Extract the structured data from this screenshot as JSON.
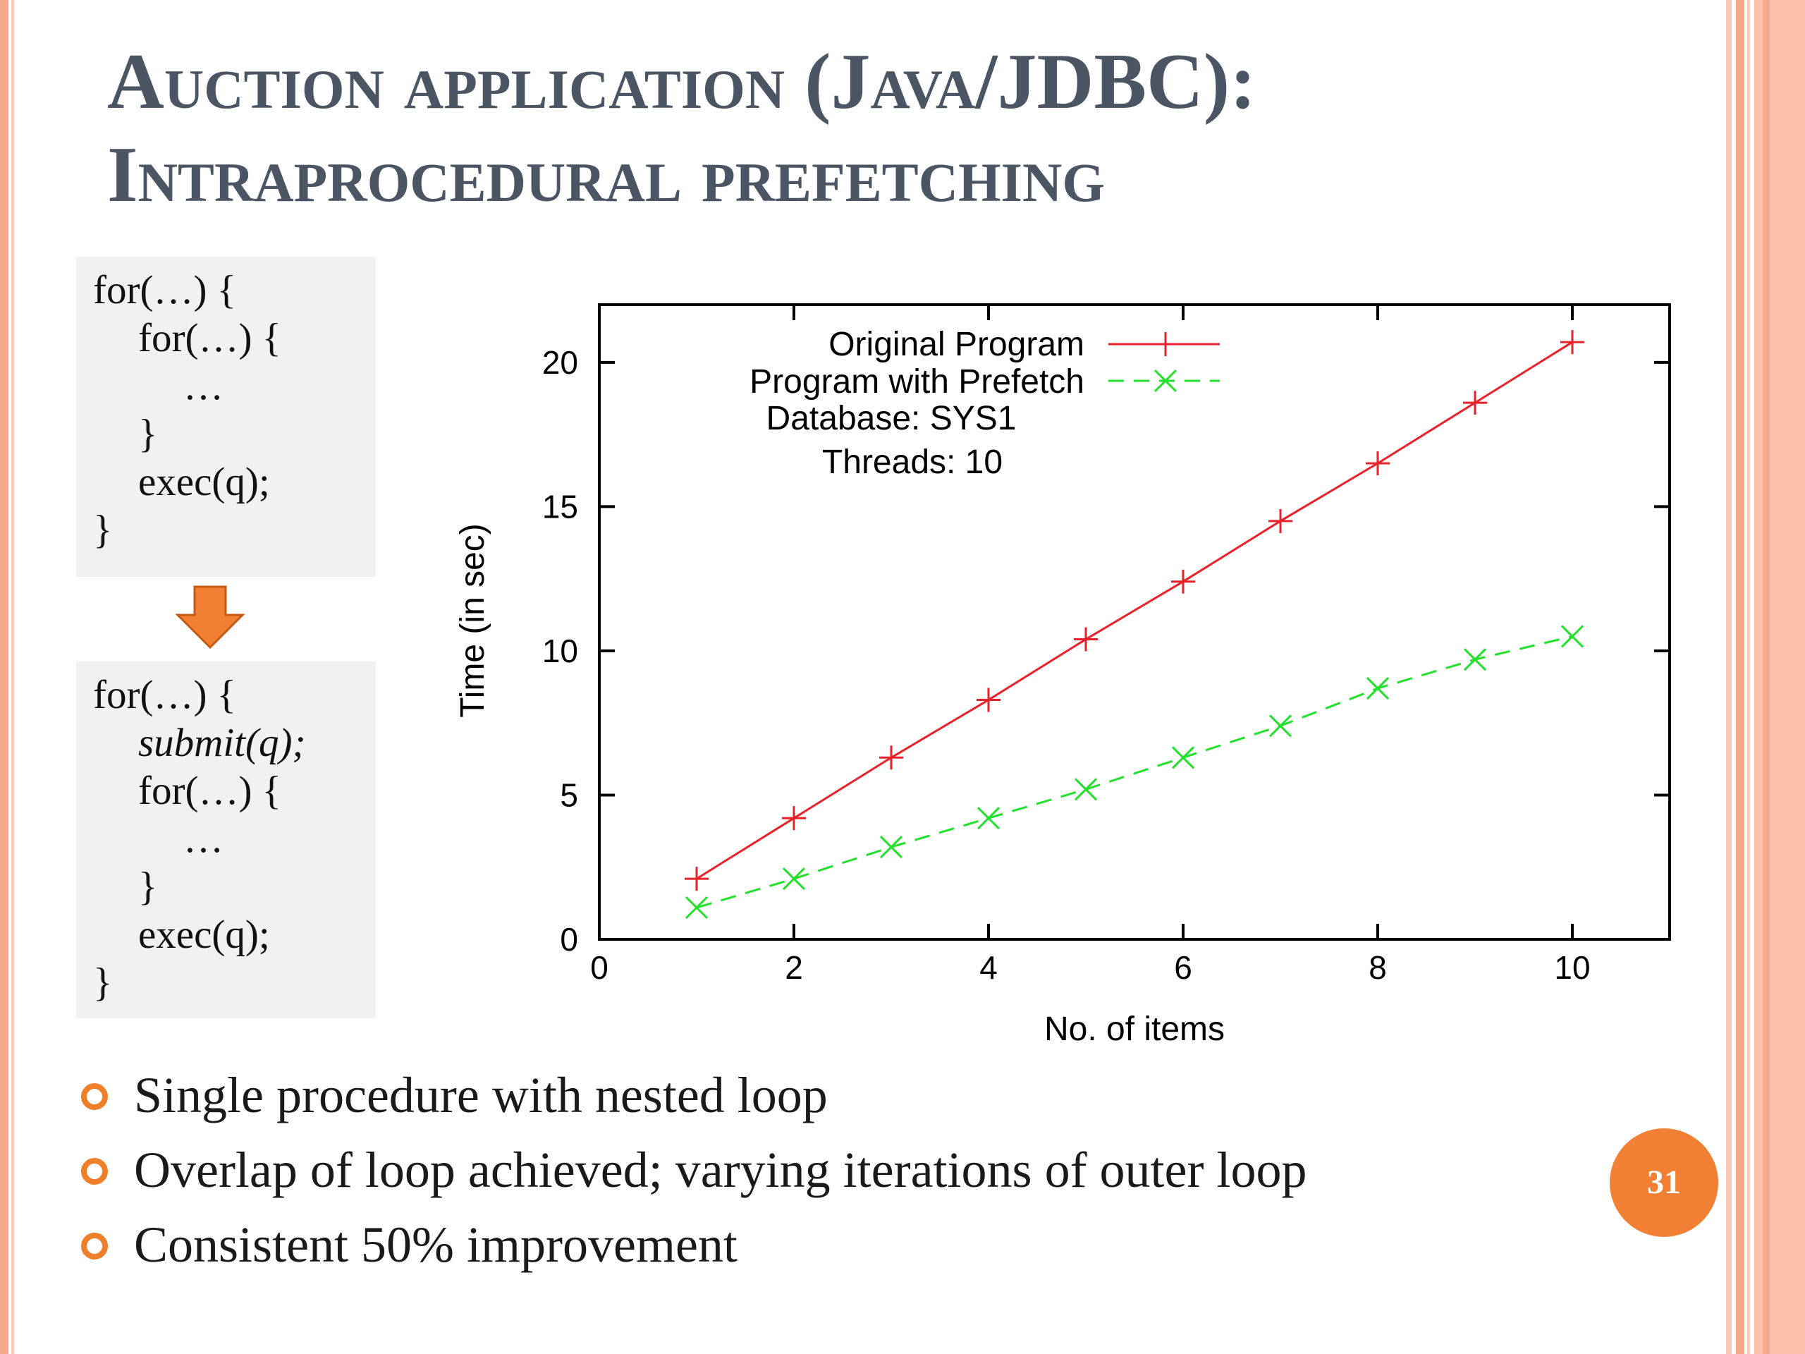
{
  "slide": {
    "title_lines": [
      "Auction application (Java/JDBC):",
      "Intraprocedural prefetching"
    ],
    "page_number": "31",
    "colors": {
      "title": "#4b5563",
      "accent": "#f07f2c",
      "border_stripes": "#f8a98c"
    }
  },
  "code_before": {
    "lines": [
      "for(…) {",
      "for(…) {",
      "…",
      "}",
      "exec(q);",
      "}"
    ]
  },
  "code_after": {
    "lines": [
      "for(…) {",
      "submit(q);",
      "for(…) {",
      "…",
      "}",
      "exec(q);",
      "}"
    ]
  },
  "bullets": [
    "Single procedure with nested loop",
    "Overlap of loop achieved; varying iterations of outer loop",
    "Consistent 50% improvement"
  ],
  "chart_data": {
    "type": "line",
    "title": "",
    "xlabel": "No. of items",
    "ylabel": "Time (in sec)",
    "xlim": [
      0,
      11
    ],
    "ylim": [
      0,
      22
    ],
    "x_ticks": [
      0,
      2,
      4,
      6,
      8,
      10
    ],
    "y_ticks": [
      0,
      5,
      10,
      15,
      20
    ],
    "grid": false,
    "legend_position": "top-left",
    "annotations": [
      "Database: SYS1",
      "Threads: 10"
    ],
    "x": [
      1,
      2,
      3,
      4,
      5,
      6,
      7,
      8,
      9,
      10
    ],
    "series": [
      {
        "name": "Original Program",
        "color": "#e8222a",
        "marker": "plus",
        "dash": "solid",
        "values": [
          2.1,
          4.2,
          6.3,
          8.3,
          10.4,
          12.4,
          14.5,
          16.5,
          18.6,
          20.7
        ]
      },
      {
        "name": "Program with Prefetch",
        "color": "#22e02c",
        "marker": "cross",
        "dash": "dashed",
        "values": [
          1.1,
          2.1,
          3.2,
          4.2,
          5.2,
          6.3,
          7.4,
          8.7,
          9.7,
          10.5
        ]
      }
    ]
  }
}
